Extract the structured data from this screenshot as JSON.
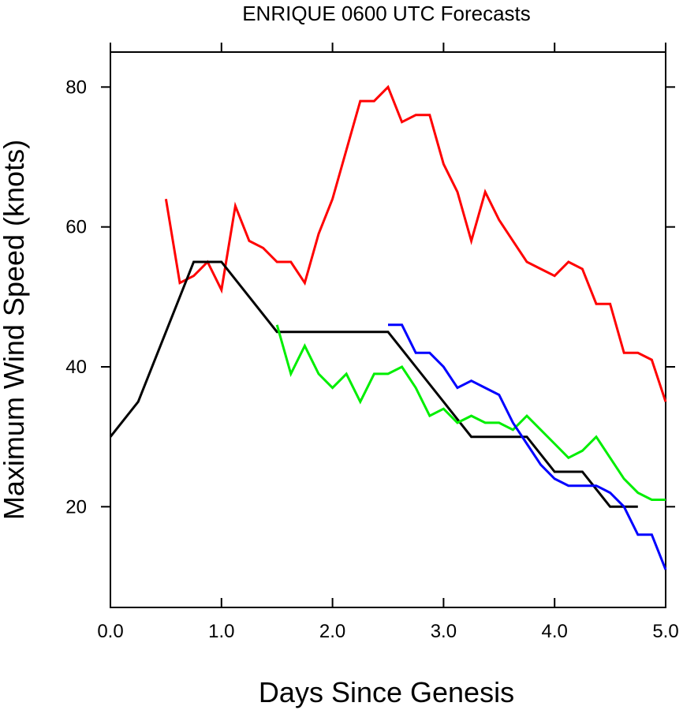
{
  "chart_data": {
    "type": "line",
    "title": "ENRIQUE 0600 UTC Forecasts",
    "xlabel": "Days Since Genesis",
    "ylabel": "Maximum Wind Speed (knots)",
    "xlim": [
      0,
      5
    ],
    "ylim": [
      5.6,
      85
    ],
    "x_ticks": [
      "0.0",
      "1.0",
      "2.0",
      "3.0",
      "4.0",
      "5.0"
    ],
    "x_tick_values": [
      0,
      1,
      2,
      3,
      4,
      5
    ],
    "y_ticks": [
      "20",
      "40",
      "60",
      "80"
    ],
    "y_tick_values": [
      20,
      40,
      60,
      80
    ],
    "grid": false,
    "series": [
      {
        "color": "#ff0000",
        "x": [
          0.5,
          0.625,
          0.75,
          0.875,
          1.0,
          1.125,
          1.25,
          1.375,
          1.5,
          1.625,
          1.75,
          1.875,
          2.0,
          2.125,
          2.25,
          2.375,
          2.5,
          2.625,
          2.75,
          2.875,
          3.0,
          3.125,
          3.25,
          3.375,
          3.5,
          3.625,
          3.75,
          3.875,
          4.0,
          4.125,
          4.25,
          4.375,
          4.5,
          4.625,
          4.75,
          4.875,
          5.0
        ],
        "y": [
          64,
          52,
          53,
          55,
          51,
          63,
          58,
          57,
          55,
          55,
          52,
          59,
          64,
          71,
          78,
          78,
          80,
          75,
          76,
          76,
          69,
          65,
          58,
          65,
          61,
          58,
          55,
          54,
          53,
          55,
          54,
          49,
          49,
          42,
          42,
          41,
          35
        ]
      },
      {
        "color": "#000000",
        "x": [
          0.0,
          0.25,
          0.5,
          0.75,
          1.0,
          1.25,
          1.5,
          1.75,
          2.0,
          2.25,
          2.5,
          2.75,
          3.0,
          3.25,
          3.5,
          3.75,
          4.0,
          4.25,
          4.5,
          4.75
        ],
        "y": [
          30,
          35,
          45,
          55,
          55,
          50,
          45,
          45,
          45,
          45,
          45,
          40,
          35,
          30,
          30,
          30,
          25,
          25,
          20,
          20
        ]
      },
      {
        "color": "#00ee00",
        "x": [
          1.5,
          1.625,
          1.75,
          1.875,
          2.0,
          2.125,
          2.25,
          2.375,
          2.5,
          2.625,
          2.75,
          2.875,
          3.0,
          3.125,
          3.25,
          3.375,
          3.5,
          3.625,
          3.75,
          3.875,
          4.0,
          4.125,
          4.25,
          4.375,
          4.5,
          4.625,
          4.75,
          4.875,
          5.0
        ],
        "y": [
          46,
          39,
          43,
          39,
          37,
          39,
          35,
          39,
          39,
          40,
          37,
          33,
          34,
          32,
          33,
          32,
          32,
          31,
          33,
          31,
          29,
          27,
          28,
          30,
          27,
          24,
          22,
          21,
          21
        ]
      },
      {
        "color": "#0000ff",
        "x": [
          2.5,
          2.625,
          2.75,
          2.875,
          3.0,
          3.125,
          3.25,
          3.375,
          3.5,
          3.625,
          3.75,
          3.875,
          4.0,
          4.125,
          4.25,
          4.375,
          4.5,
          4.625,
          4.75,
          4.875,
          5.0
        ],
        "y": [
          46,
          46,
          42,
          42,
          40,
          37,
          38,
          37,
          36,
          32,
          29,
          26,
          24,
          23,
          23,
          23,
          22,
          20,
          16,
          16,
          11
        ]
      }
    ]
  }
}
